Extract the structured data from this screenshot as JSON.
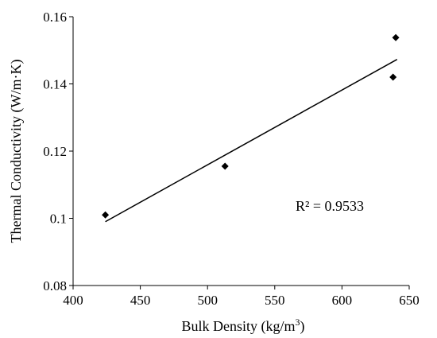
{
  "chart_data": {
    "type": "scatter",
    "title": "",
    "xlabel": "Bulk Density (kg/m",
    "xlabel_sup": "3",
    "xlabel_close": ")",
    "ylabel": "Thermal Conductivity (W/m·K)",
    "xlim": [
      400,
      650
    ],
    "ylim": [
      0.08,
      0.16
    ],
    "x_ticks": [
      "400",
      "450",
      "500",
      "550",
      "600",
      "650"
    ],
    "y_ticks": [
      "0.08",
      "0.1",
      "0.12",
      "0.14",
      "0.16"
    ],
    "x_tick_values": [
      400,
      450,
      500,
      550,
      600,
      650
    ],
    "y_tick_values": [
      0.08,
      0.1,
      0.12,
      0.14,
      0.16
    ],
    "series": [
      {
        "points": [
          {
            "x": 424,
            "y": 0.101
          },
          {
            "x": 513,
            "y": 0.1155
          },
          {
            "x": 638,
            "y": 0.142
          },
          {
            "x": 640,
            "y": 0.1538
          }
        ]
      }
    ],
    "trendline": {
      "x": [
        424,
        641
      ],
      "y": [
        0.099,
        0.1473
      ]
    },
    "annotation": "R² = 0.9533",
    "grid": false,
    "legend": "none",
    "marker": "diamond",
    "color": "#000000"
  }
}
